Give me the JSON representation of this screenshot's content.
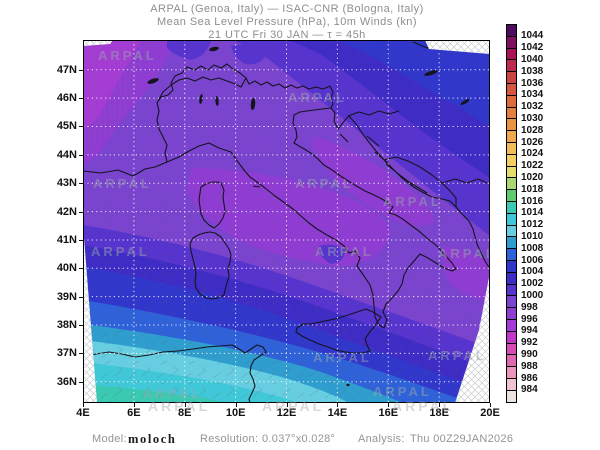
{
  "header": {
    "line1": "ARPAL (Genoa, Italy)  —  ISAC-CNR (Bologna, Italy)",
    "line2": "Mean Sea Level Pressure (hPa), 10m Winds (kn)",
    "line3": "21 UTC Fri 30 JAN  —  τ = 45h"
  },
  "footer": {
    "model_label": "Model:",
    "model_value": "moloch",
    "resolution_label": "Resolution:",
    "resolution_value": "0.037°x0.028°",
    "analysis_label": "Analysis:",
    "analysis_value": "Thu 00Z29JAN2026"
  },
  "watermark": {
    "text": "ARPAL"
  },
  "chart_data": {
    "type": "heatmap",
    "title": "Mean Sea Level Pressure (hPa), 10m Winds (kn)",
    "org": "ARPAL (Genoa, Italy) - ISAC-CNR (Bologna, Italy)",
    "valid_time": "21 UTC Fri 30 JAN",
    "forecast_lead": "45h",
    "model": "moloch",
    "resolution": "0.037°x0.028°",
    "analysis_time": "Thu 00Z29JAN2026",
    "x_axis": {
      "label_ticks": [
        "4E",
        "6E",
        "8E",
        "10E",
        "12E",
        "14E",
        "16E",
        "18E",
        "20E"
      ],
      "range_deg_east": [
        4,
        20
      ]
    },
    "y_axis": {
      "label_ticks": [
        "47N",
        "46N",
        "45N",
        "44N",
        "43N",
        "42N",
        "41N",
        "40N",
        "39N",
        "38N",
        "37N",
        "36N"
      ],
      "range_deg_north": [
        36,
        47
      ]
    },
    "grid": "white dotted, 2deg lon x 1deg lat",
    "colorbar": {
      "unit": "hPa",
      "min": 984,
      "max": 1044,
      "step": 2,
      "labels": [
        "1044",
        "1042",
        "1040",
        "1038",
        "1036",
        "1034",
        "1032",
        "1030",
        "1028",
        "1026",
        "1024",
        "1022",
        "1020",
        "1018",
        "1016",
        "1014",
        "1012",
        "1010",
        "1008",
        "1006",
        "1004",
        "1002",
        "1000",
        "998",
        "996",
        "994",
        "992",
        "990",
        "988",
        "986",
        "984"
      ],
      "colors": [
        "#4e0c5f",
        "#7e1060",
        "#a81457",
        "#bc2b4e",
        "#c94543",
        "#d3583f",
        "#dc6c3c",
        "#e3803c",
        "#e99443",
        "#eea84d",
        "#f2bc58",
        "#f4d063",
        "#e4dc6b",
        "#a9d873",
        "#5fcb70",
        "#3bc9b4",
        "#41c8d8",
        "#66cee0",
        "#2f9ecf",
        "#2f62d8",
        "#3237cc",
        "#3f2cc5",
        "#5834cf",
        "#7a44cf",
        "#8f3cd3",
        "#a63ad6",
        "#c136c6",
        "#d44cb4",
        "#dd68b0",
        "#e995bd",
        "#f0c3d2",
        "#ece2de"
      ]
    },
    "field_regions": [
      {
        "area": "northwest corner (SE France / Gulf of Lion)",
        "mslp_hPa": "994-998"
      },
      {
        "area": "north and central Italy, Tyrrhenian Sea",
        "mslp_hPa": "998-1000"
      },
      {
        "area": "central and south Adriatic",
        "mslp_hPa": "996-998"
      },
      {
        "area": "northeast (Austria / Pannonia)",
        "mslp_hPa": "1000-1006"
      },
      {
        "area": "southern Tyrrhenian toward Sicily",
        "mslp_hPa": "1000-1008"
      },
      {
        "area": "Sicily channel / North Africa coast",
        "mslp_hPa": "1008-1016"
      }
    ]
  }
}
